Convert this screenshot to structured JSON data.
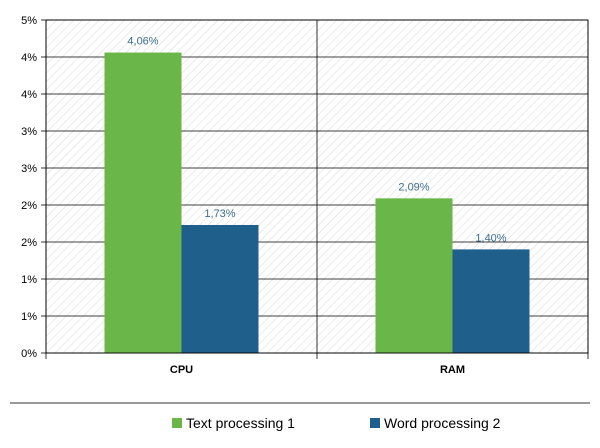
{
  "chart_data": {
    "type": "bar",
    "categories": [
      "CPU",
      "RAM"
    ],
    "series": [
      {
        "name": "Text processing 1",
        "values": [
          4.06,
          2.09
        ],
        "labels": [
          "4,06%",
          "2,09%"
        ],
        "color": "#6ab648"
      },
      {
        "name": "Word processing 2",
        "values": [
          1.73,
          1.4
        ],
        "labels": [
          "1,73%",
          "1,40%"
        ],
        "color": "#1f5f8b"
      }
    ],
    "y_ticks": [
      {
        "value": 0,
        "label": "0%"
      },
      {
        "value": 0.5,
        "label": "1%"
      },
      {
        "value": 1,
        "label": "1%"
      },
      {
        "value": 1.5,
        "label": "2%"
      },
      {
        "value": 2,
        "label": "2%"
      },
      {
        "value": 2.5,
        "label": "3%"
      },
      {
        "value": 3,
        "label": "3%"
      },
      {
        "value": 3.5,
        "label": "4%"
      },
      {
        "value": 4,
        "label": "4%"
      },
      {
        "value": 4.5,
        "label": "5%"
      }
    ],
    "ylim": [
      0,
      4.5
    ],
    "grid": true,
    "legend_position": "bottom",
    "data_label_color": "#3d6f8f"
  }
}
